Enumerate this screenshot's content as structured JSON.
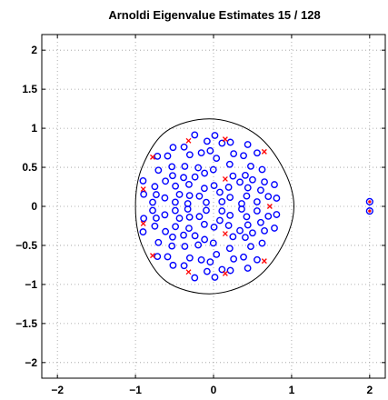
{
  "chart_data": {
    "type": "scatter",
    "title": "Arnoldi Eigenvalue Estimates 15 / 128",
    "xlabel": "",
    "ylabel": "",
    "xlim": [
      -2.2,
      2.2
    ],
    "ylim": [
      -2.2,
      2.2
    ],
    "xticks": [
      -2,
      -1,
      0,
      1,
      2
    ],
    "yticks": [
      -2,
      -1.5,
      -1,
      -0.5,
      0,
      0.5,
      1,
      1.5,
      2
    ],
    "xtick_labels": [
      "−2",
      "−1",
      "0",
      "1",
      "2"
    ],
    "ytick_labels": [
      "−2",
      "−1.5",
      "−1",
      "−0.5",
      "0",
      "0.5",
      "1",
      "1.5",
      "2"
    ],
    "grid": true,
    "legend": "none",
    "colors": {
      "eigenvalues": "#0000ff",
      "estimates": "#ff0000",
      "boundary": "#000000"
    },
    "outliers": [
      {
        "x": 2.0,
        "y": 0.06
      },
      {
        "x": 2.0,
        "y": -0.06
      }
    ],
    "estimates": [
      {
        "x": -0.78,
        "y": 0.63
      },
      {
        "x": -0.32,
        "y": 0.84
      },
      {
        "x": 0.15,
        "y": 0.86
      },
      {
        "x": 0.65,
        "y": 0.7
      },
      {
        "x": -0.9,
        "y": 0.22
      },
      {
        "x": -0.9,
        "y": -0.22
      },
      {
        "x": -0.78,
        "y": -0.63
      },
      {
        "x": -0.32,
        "y": -0.84
      },
      {
        "x": 0.15,
        "y": -0.86
      },
      {
        "x": 0.65,
        "y": -0.7
      },
      {
        "x": 0.72,
        "y": 0.0
      },
      {
        "x": 0.15,
        "y": 0.35
      },
      {
        "x": 0.15,
        "y": -0.35
      }
    ],
    "boundary": {
      "center": [
        -0.05,
        0.0
      ],
      "radii": [
        {
          "angle_deg": 0,
          "r": 1.08
        },
        {
          "angle_deg": 30,
          "r": 1.06
        },
        {
          "angle_deg": 60,
          "r": 1.1
        },
        {
          "angle_deg": 90,
          "r": 1.12
        },
        {
          "angle_deg": 120,
          "r": 1.11
        },
        {
          "angle_deg": 150,
          "r": 1.0
        },
        {
          "angle_deg": 180,
          "r": 0.95
        },
        {
          "angle_deg": 210,
          "r": 1.0
        },
        {
          "angle_deg": 240,
          "r": 1.11
        },
        {
          "angle_deg": 270,
          "r": 1.12
        },
        {
          "angle_deg": 300,
          "r": 1.1
        },
        {
          "angle_deg": 330,
          "r": 1.06
        }
      ]
    },
    "eigenvalue_cloud": {
      "count": 126,
      "symmetric_about_real_axis": true,
      "approx_extent": {
        "x": [
          -0.92,
          1.0
        ],
        "y": [
          -0.95,
          0.95
        ]
      }
    }
  }
}
